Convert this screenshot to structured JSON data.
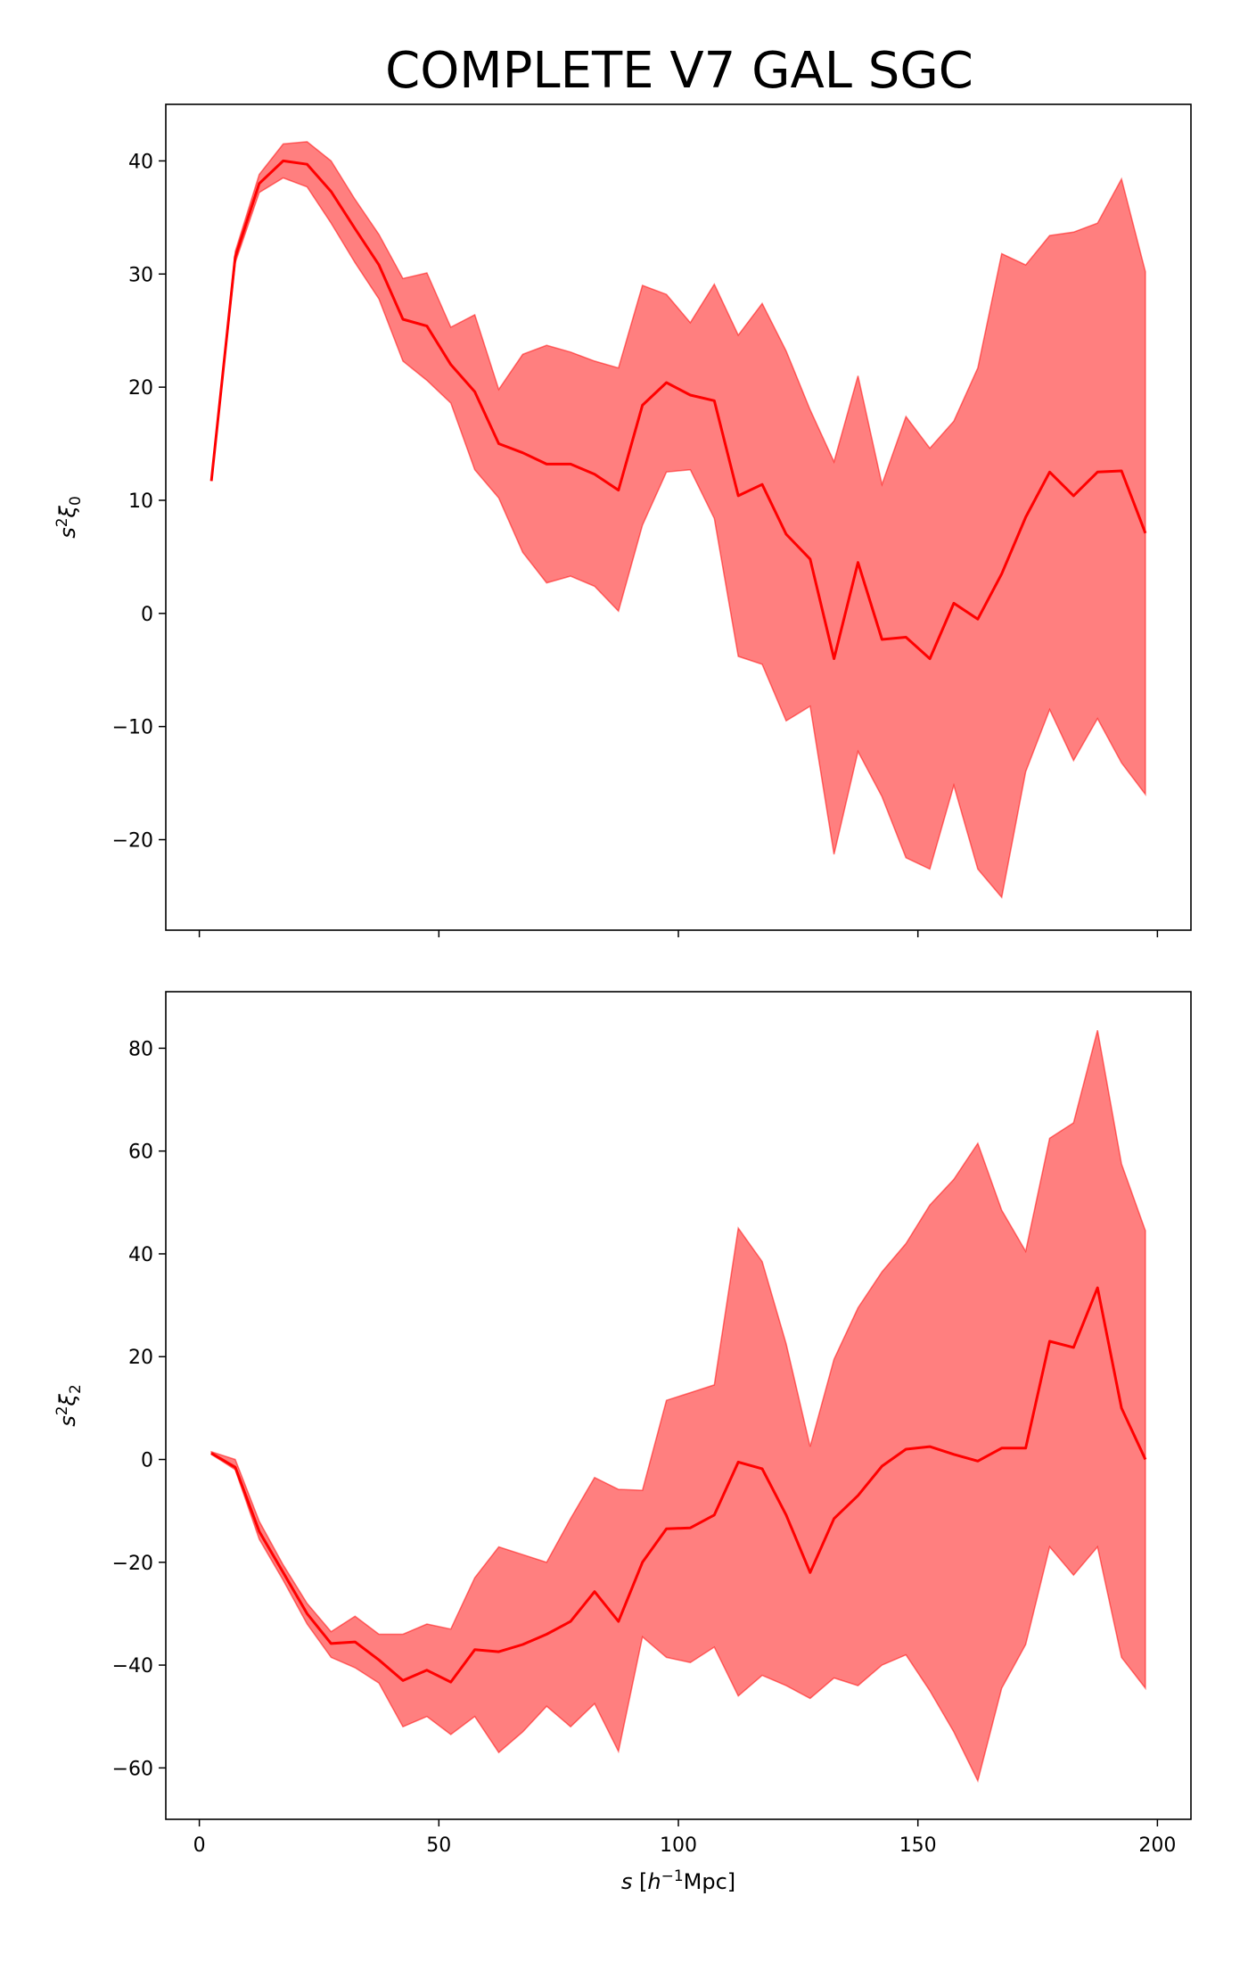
{
  "title": "COMPLETE V7 GAL SGC",
  "colors": {
    "line": "#ff0000",
    "band": "#ff0000",
    "band_opacity": 0.5
  },
  "chart_data": [
    {
      "type": "area",
      "title": "COMPLETE V7 GAL SGC",
      "xlabel": "",
      "ylabel": {
        "base": "s",
        "sup": "2",
        "sym": "ξ",
        "sub": "0"
      },
      "xlim": [
        -7,
        207
      ],
      "ylim": [
        -28,
        45
      ],
      "xticks": [
        0,
        50,
        100,
        150,
        200
      ],
      "yticks": [
        -20,
        -10,
        0,
        10,
        20,
        30,
        40
      ],
      "show_xtick_labels": false,
      "grid": false,
      "x": [
        2.5,
        7.5,
        12.5,
        17.5,
        22.5,
        27.5,
        32.5,
        37.5,
        42.5,
        47.5,
        52.5,
        57.5,
        62.5,
        67.5,
        72.5,
        77.5,
        82.5,
        87.5,
        92.5,
        97.5,
        102.5,
        107.5,
        112.5,
        117.5,
        122.5,
        127.5,
        132.5,
        137.5,
        142.5,
        147.5,
        152.5,
        157.5,
        162.5,
        167.5,
        172.5,
        177.5,
        182.5,
        187.5,
        192.5,
        197.5
      ],
      "series": [
        {
          "values": [
            11.7,
            31.5,
            38.0,
            40.0,
            39.7,
            37.3,
            34.0,
            30.8,
            26.0,
            25.4,
            22.0,
            19.6,
            15.0,
            14.2,
            13.2,
            13.2,
            12.3,
            10.9,
            18.4,
            20.4,
            19.3,
            18.8,
            10.4,
            11.4,
            7.0,
            4.8,
            -4.0,
            4.5,
            -2.3,
            -2.1,
            -4.0,
            0.9,
            -0.5,
            3.5,
            8.5,
            12.5,
            10.4,
            12.5,
            12.6,
            7.1
          ],
          "lower": [
            11.7,
            31.0,
            37.2,
            38.5,
            37.7,
            34.5,
            31.0,
            27.8,
            22.3,
            20.6,
            18.6,
            12.7,
            10.2,
            5.4,
            2.7,
            3.3,
            2.4,
            0.2,
            7.8,
            12.5,
            12.7,
            8.4,
            -3.8,
            -4.5,
            -9.5,
            -8.2,
            -21.3,
            -12.2,
            -16.2,
            -21.6,
            -22.6,
            -15.2,
            -22.6,
            -25.1,
            -14.0,
            -8.5,
            -13.0,
            -9.3,
            -13.2,
            -16.0
          ],
          "upper": [
            11.7,
            32.0,
            38.8,
            41.5,
            41.7,
            40.0,
            36.6,
            33.5,
            29.6,
            30.1,
            25.3,
            26.4,
            19.8,
            22.9,
            23.7,
            23.1,
            22.3,
            21.7,
            29.0,
            28.2,
            25.7,
            29.1,
            24.6,
            27.4,
            23.2,
            18.0,
            13.4,
            21.0,
            11.4,
            17.4,
            14.6,
            17.0,
            21.7,
            31.8,
            30.8,
            33.4,
            33.7,
            34.5,
            38.4,
            30.2
          ]
        }
      ]
    },
    {
      "type": "area",
      "xlabel": {
        "base": "s",
        "open": " [",
        "h": "h",
        "sup": "−1",
        "rest": "Mpc]"
      },
      "ylabel": {
        "base": "s",
        "sup": "2",
        "sym": "ξ",
        "sub": "2"
      },
      "xlim": [
        -7,
        207
      ],
      "ylim": [
        -70,
        91
      ],
      "xticks": [
        0,
        50,
        100,
        150,
        200
      ],
      "xtick_labels": [
        "0",
        "50",
        "100",
        "150",
        "200"
      ],
      "yticks": [
        -60,
        -40,
        -20,
        0,
        20,
        40,
        60,
        80
      ],
      "grid": false,
      "x": [
        2.5,
        7.5,
        12.5,
        17.5,
        22.5,
        27.5,
        32.5,
        37.5,
        42.5,
        47.5,
        52.5,
        57.5,
        62.5,
        67.5,
        72.5,
        77.5,
        82.5,
        87.5,
        92.5,
        97.5,
        102.5,
        107.5,
        112.5,
        117.5,
        122.5,
        127.5,
        132.5,
        137.5,
        142.5,
        147.5,
        152.5,
        157.5,
        162.5,
        167.5,
        172.5,
        177.5,
        182.5,
        187.5,
        192.5,
        197.5
      ],
      "series": [
        {
          "values": [
            1.2,
            -1.5,
            -14.0,
            -22.0,
            -30.0,
            -35.8,
            -35.5,
            -39.0,
            -43.0,
            -41.0,
            -43.3,
            -37.0,
            -37.4,
            -36.0,
            -34.0,
            -31.5,
            -25.7,
            -31.5,
            -20.0,
            -13.5,
            -13.3,
            -10.8,
            -0.5,
            -1.8,
            -10.8,
            -22.0,
            -11.5,
            -7.0,
            -1.3,
            2.0,
            2.5,
            1.0,
            -0.3,
            2.2,
            2.2,
            23.0,
            21.8,
            33.4,
            10.0,
            0.0
          ],
          "lower": [
            1.0,
            -2.0,
            -15.5,
            -23.5,
            -32.0,
            -38.5,
            -40.5,
            -43.5,
            -52.0,
            -50.0,
            -53.5,
            -50.0,
            -57.0,
            -53.0,
            -48.0,
            -52.0,
            -47.5,
            -56.8,
            -34.5,
            -38.5,
            -39.5,
            -36.5,
            -46.0,
            -42.0,
            -44.0,
            -46.5,
            -42.5,
            -44.0,
            -40.0,
            -38.0,
            -45.0,
            -53.0,
            -62.5,
            -44.5,
            -36.0,
            -17.0,
            -22.5,
            -17.0,
            -38.5,
            -44.5
          ],
          "upper": [
            1.5,
            0.0,
            -12.0,
            -20.5,
            -28.0,
            -33.5,
            -30.5,
            -34.0,
            -34.0,
            -32.0,
            -33.0,
            -23.0,
            -17.0,
            -18.5,
            -20.0,
            -11.5,
            -3.5,
            -5.8,
            -6.0,
            11.5,
            13.0,
            14.5,
            45.0,
            38.5,
            22.5,
            2.5,
            19.5,
            29.5,
            36.5,
            42.0,
            49.5,
            54.5,
            61.5,
            48.5,
            40.5,
            62.5,
            65.5,
            83.5,
            57.5,
            44.5
          ]
        }
      ]
    }
  ]
}
